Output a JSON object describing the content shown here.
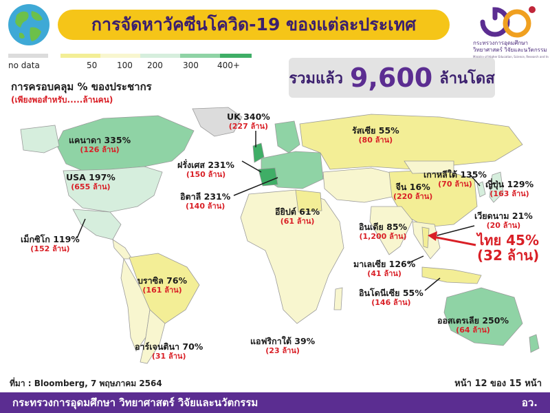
{
  "header": {
    "title": "การจัดหาวัคซีนโควิด-19 ของแต่ละประเทศ",
    "ministry_name_th_line1": "กระทรวงการอุดมศึกษา",
    "ministry_name_th_line2": "วิทยาศาสตร์ วิจัยและนวัตกรรม",
    "ministry_name_en": "Ministry of Higher Education, Science, Research and Innovation"
  },
  "legend": {
    "no_data_label": "no data",
    "items": [
      {
        "label": "50",
        "color": "#f3ee96"
      },
      {
        "label": "100",
        "color": "#f8f6cf"
      },
      {
        "label": "200",
        "color": "#d6eedd"
      },
      {
        "label": "300",
        "color": "#8fd3a5"
      },
      {
        "label": "400+",
        "color": "#3fae66"
      }
    ],
    "no_data_color": "#dcdcdc"
  },
  "coverage": {
    "title": "การครอบคลุม % ของประชากร",
    "subtitle": "(เพียงพอสำหรับ.....ล้านคน)"
  },
  "total": {
    "label": "รวมแล้ว",
    "value": "9,600",
    "unit": "ล้านโดส"
  },
  "countries": [
    {
      "key": "uk",
      "name": "UK 340%",
      "pop": "(227 ล้าน)"
    },
    {
      "key": "russia",
      "name": "รัสเซีย 55%",
      "pop": "(80 ล้าน)"
    },
    {
      "key": "canada",
      "name": "แคนาดา 335%",
      "pop": "(126 ล้าน)"
    },
    {
      "key": "france",
      "name": "ฝรั่งเศส 231%",
      "pop": "(150 ล้าน)"
    },
    {
      "key": "korea",
      "name": "เกาหลีใต้ 135%",
      "pop": "(70 ล้าน)"
    },
    {
      "key": "usa",
      "name": "USA 197%",
      "pop": "(655 ล้าน)"
    },
    {
      "key": "japan",
      "name": "ญี่ปุ่น 129%",
      "pop": "(163 ล้าน)"
    },
    {
      "key": "china",
      "name": "จีน 16%",
      "pop": "(220 ล้าน)"
    },
    {
      "key": "italy",
      "name": "อิตาลี 231%",
      "pop": "(140 ล้าน)"
    },
    {
      "key": "egypt",
      "name": "อียิปต์ 61%",
      "pop": "(61 ล้าน)"
    },
    {
      "key": "vietnam",
      "name": "เวียดนาม 21%",
      "pop": "(20 ล้าน)"
    },
    {
      "key": "india",
      "name": "อินเดีย 85%",
      "pop": "(1,200 ล้าน)"
    },
    {
      "key": "mexico",
      "name": "เม็กซิโก 119%",
      "pop": "(152 ล้าน)"
    },
    {
      "key": "malaysia",
      "name": "มาเลเซีย 126%",
      "pop": "(41 ล้าน)"
    },
    {
      "key": "brazil",
      "name": "บราซิล 76%",
      "pop": "(161 ล้าน)"
    },
    {
      "key": "indonesia",
      "name": "อินโดนีเซีย 55%",
      "pop": "(146 ล้าน)"
    },
    {
      "key": "australia",
      "name": "ออสเตรเลีย 250%",
      "pop": "(64 ล้าน)"
    },
    {
      "key": "argentina",
      "name": "อาร์เจนตินา 70%",
      "pop": "(31 ล้าน)"
    },
    {
      "key": "south_africa",
      "name": "แอฟริกาใต้ 39%",
      "pop": "(23 ล้าน)"
    }
  ],
  "thailand": {
    "name": "ไทย 45%",
    "pop": "(32 ล้าน)",
    "arrow_color": "#d91f26"
  },
  "footer": {
    "source": "ที่มา : Bloomberg, 7 พฤษภาคม 2564",
    "page": "หน้า 12 ของ 15 หน้า",
    "ministry": "กระทรวงการอุดมศึกษา วิทยาศาสตร์ วิจัยและนวัตกรรม",
    "abbr": "อว."
  }
}
